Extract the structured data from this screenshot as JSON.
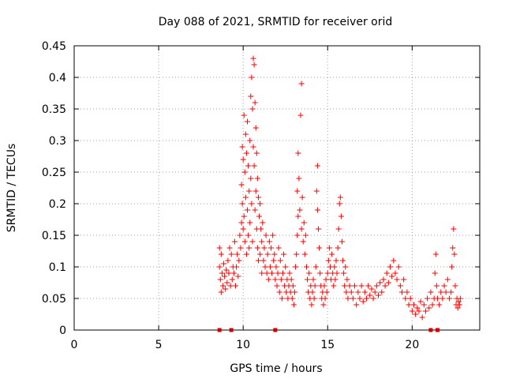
{
  "chart_data": {
    "type": "scatter",
    "title": "Day 088 of 2021, SRMTID for receiver orid",
    "xlabel": "GPS time / hours",
    "ylabel": "SRMTID / TECUs",
    "xlim": [
      0,
      24
    ],
    "ylim": [
      0,
      0.45
    ],
    "x_ticks": [
      0,
      5,
      10,
      15,
      20
    ],
    "x_tick_labels": [
      "0",
      "5",
      "10",
      "15",
      "20"
    ],
    "y_ticks": [
      0,
      0.05,
      0.1,
      0.15,
      0.2,
      0.25,
      0.3,
      0.35,
      0.4,
      0.45
    ],
    "y_tick_labels": [
      "0",
      "0.05",
      "0.1",
      "0.15",
      "0.2",
      "0.25",
      "0.3",
      "0.35",
      "0.4",
      "0.45"
    ],
    "grid": true,
    "color": "#ff0000",
    "marker_color": "#cc0000",
    "series_markers": "plus",
    "baseline_markers_x": [
      8.6,
      9.3,
      11.9,
      21.1,
      21.5
    ],
    "series": [
      {
        "name": "SRMTID",
        "points": [
          [
            8.6,
            0.13
          ],
          [
            8.6,
            0.1
          ],
          [
            8.65,
            0.08
          ],
          [
            8.7,
            0.12
          ],
          [
            8.7,
            0.06
          ],
          [
            8.75,
            0.09
          ],
          [
            8.8,
            0.07
          ],
          [
            8.85,
            0.105
          ],
          [
            8.9,
            0.085
          ],
          [
            8.95,
            0.065
          ],
          [
            9.0,
            0.095
          ],
          [
            9.05,
            0.075
          ],
          [
            9.1,
            0.11
          ],
          [
            9.15,
            0.09
          ],
          [
            9.2,
            0.13
          ],
          [
            9.25,
            0.07
          ],
          [
            9.3,
            0.12
          ],
          [
            9.35,
            0.08
          ],
          [
            9.4,
            0.1
          ],
          [
            9.45,
            0.09
          ],
          [
            9.5,
            0.14
          ],
          [
            9.55,
            0.07
          ],
          [
            9.6,
            0.1
          ],
          [
            9.65,
            0.12
          ],
          [
            9.7,
            0.085
          ],
          [
            9.75,
            0.11
          ],
          [
            9.8,
            0.15
          ],
          [
            9.85,
            0.13
          ],
          [
            9.9,
            0.17
          ],
          [
            9.9,
            0.23
          ],
          [
            9.95,
            0.2
          ],
          [
            9.95,
            0.29
          ],
          [
            10.0,
            0.27
          ],
          [
            10.0,
            0.16
          ],
          [
            10.05,
            0.34
          ],
          [
            10.05,
            0.18
          ],
          [
            10.1,
            0.25
          ],
          [
            10.1,
            0.14
          ],
          [
            10.15,
            0.31
          ],
          [
            10.15,
            0.21
          ],
          [
            10.2,
            0.28
          ],
          [
            10.2,
            0.12
          ],
          [
            10.25,
            0.33
          ],
          [
            10.25,
            0.19
          ],
          [
            10.3,
            0.26
          ],
          [
            10.3,
            0.15
          ],
          [
            10.35,
            0.22
          ],
          [
            10.35,
            0.13
          ],
          [
            10.4,
            0.3
          ],
          [
            10.4,
            0.17
          ],
          [
            10.45,
            0.37
          ],
          [
            10.45,
            0.24
          ],
          [
            10.5,
            0.4
          ],
          [
            10.5,
            0.2
          ],
          [
            10.55,
            0.35
          ],
          [
            10.55,
            0.14
          ],
          [
            10.6,
            0.43
          ],
          [
            10.6,
            0.29
          ],
          [
            10.65,
            0.42
          ],
          [
            10.65,
            0.26
          ],
          [
            10.7,
            0.36
          ],
          [
            10.7,
            0.19
          ],
          [
            10.75,
            0.32
          ],
          [
            10.75,
            0.22
          ],
          [
            10.8,
            0.28
          ],
          [
            10.8,
            0.16
          ],
          [
            10.85,
            0.24
          ],
          [
            10.85,
            0.13
          ],
          [
            10.9,
            0.21
          ],
          [
            10.9,
            0.11
          ],
          [
            10.95,
            0.18
          ],
          [
            11.0,
            0.2
          ],
          [
            11.0,
            0.12
          ],
          [
            11.05,
            0.16
          ],
          [
            11.1,
            0.14
          ],
          [
            11.1,
            0.09
          ],
          [
            11.15,
            0.17
          ],
          [
            11.2,
            0.11
          ],
          [
            11.25,
            0.13
          ],
          [
            11.3,
            0.1
          ],
          [
            11.35,
            0.15
          ],
          [
            11.4,
            0.09
          ],
          [
            11.45,
            0.12
          ],
          [
            11.5,
            0.08
          ],
          [
            11.55,
            0.14
          ],
          [
            11.6,
            0.1
          ],
          [
            11.65,
            0.13
          ],
          [
            11.7,
            0.09
          ],
          [
            11.75,
            0.15
          ],
          [
            11.8,
            0.11
          ],
          [
            11.85,
            0.12
          ],
          [
            11.9,
            0.08
          ],
          [
            11.95,
            0.1
          ],
          [
            12.0,
            0.07
          ],
          [
            12.05,
            0.09
          ],
          [
            12.1,
            0.13
          ],
          [
            12.15,
            0.06
          ],
          [
            12.2,
            0.11
          ],
          [
            12.25,
            0.08
          ],
          [
            12.3,
            0.05
          ],
          [
            12.35,
            0.09
          ],
          [
            12.4,
            0.12
          ],
          [
            12.45,
            0.07
          ],
          [
            12.5,
            0.1
          ],
          [
            12.55,
            0.06
          ],
          [
            12.6,
            0.08
          ],
          [
            12.65,
            0.05
          ],
          [
            12.7,
            0.07
          ],
          [
            12.75,
            0.09
          ],
          [
            12.8,
            0.06
          ],
          [
            12.85,
            0.08
          ],
          [
            12.9,
            0.05
          ],
          [
            12.95,
            0.07
          ],
          [
            13.0,
            0.04
          ],
          [
            13.05,
            0.06
          ],
          [
            13.1,
            0.1
          ],
          [
            13.15,
            0.12
          ],
          [
            13.2,
            0.22
          ],
          [
            13.2,
            0.15
          ],
          [
            13.25,
            0.28
          ],
          [
            13.25,
            0.18
          ],
          [
            13.3,
            0.24
          ],
          [
            13.35,
            0.19
          ],
          [
            13.4,
            0.34
          ],
          [
            13.45,
            0.39
          ],
          [
            13.45,
            0.16
          ],
          [
            13.5,
            0.21
          ],
          [
            13.55,
            0.14
          ],
          [
            13.6,
            0.17
          ],
          [
            13.65,
            0.12
          ],
          [
            13.7,
            0.15
          ],
          [
            13.75,
            0.1
          ],
          [
            13.8,
            0.08
          ],
          [
            13.85,
            0.06
          ],
          [
            13.9,
            0.09
          ],
          [
            13.95,
            0.05
          ],
          [
            14.0,
            0.07
          ],
          [
            14.05,
            0.04
          ],
          [
            14.1,
            0.06
          ],
          [
            14.15,
            0.08
          ],
          [
            14.2,
            0.05
          ],
          [
            14.25,
            0.07
          ],
          [
            14.3,
            0.1
          ],
          [
            14.35,
            0.22
          ],
          [
            14.4,
            0.26
          ],
          [
            14.4,
            0.19
          ],
          [
            14.45,
            0.16
          ],
          [
            14.5,
            0.13
          ],
          [
            14.55,
            0.09
          ],
          [
            14.6,
            0.07
          ],
          [
            14.65,
            0.05
          ],
          [
            14.7,
            0.06
          ],
          [
            14.75,
            0.04
          ],
          [
            14.8,
            0.07
          ],
          [
            14.85,
            0.05
          ],
          [
            14.9,
            0.08
          ],
          [
            14.95,
            0.06
          ],
          [
            15.0,
            0.09
          ],
          [
            15.05,
            0.11
          ],
          [
            15.1,
            0.13
          ],
          [
            15.15,
            0.1
          ],
          [
            15.2,
            0.08
          ],
          [
            15.25,
            0.12
          ],
          [
            15.3,
            0.09
          ],
          [
            15.35,
            0.07
          ],
          [
            15.4,
            0.1
          ],
          [
            15.45,
            0.08
          ],
          [
            15.5,
            0.11
          ],
          [
            15.55,
            0.09
          ],
          [
            15.6,
            0.13
          ],
          [
            15.65,
            0.16
          ],
          [
            15.7,
            0.2
          ],
          [
            15.75,
            0.21
          ],
          [
            15.8,
            0.18
          ],
          [
            15.85,
            0.14
          ],
          [
            15.9,
            0.11
          ],
          [
            15.95,
            0.09
          ],
          [
            16.0,
            0.07
          ],
          [
            16.05,
            0.1
          ],
          [
            16.1,
            0.06
          ],
          [
            16.15,
            0.08
          ],
          [
            16.2,
            0.05
          ],
          [
            16.3,
            0.07
          ],
          [
            16.4,
            0.06
          ],
          [
            16.5,
            0.05
          ],
          [
            16.6,
            0.07
          ],
          [
            16.7,
            0.04
          ],
          [
            16.8,
            0.06
          ],
          [
            16.9,
            0.05
          ],
          [
            17.0,
            0.07
          ],
          [
            17.1,
            0.045
          ],
          [
            17.2,
            0.06
          ],
          [
            17.3,
            0.05
          ],
          [
            17.4,
            0.07
          ],
          [
            17.5,
            0.055
          ],
          [
            17.6,
            0.065
          ],
          [
            17.7,
            0.05
          ],
          [
            17.8,
            0.06
          ],
          [
            17.9,
            0.07
          ],
          [
            18.0,
            0.055
          ],
          [
            18.1,
            0.075
          ],
          [
            18.2,
            0.06
          ],
          [
            18.3,
            0.08
          ],
          [
            18.4,
            0.07
          ],
          [
            18.5,
            0.09
          ],
          [
            18.6,
            0.075
          ],
          [
            18.7,
            0.1
          ],
          [
            18.8,
            0.085
          ],
          [
            18.9,
            0.11
          ],
          [
            19.0,
            0.09
          ],
          [
            19.1,
            0.08
          ],
          [
            19.2,
            0.1
          ],
          [
            19.3,
            0.07
          ],
          [
            19.4,
            0.06
          ],
          [
            19.5,
            0.08
          ],
          [
            19.6,
            0.05
          ],
          [
            19.7,
            0.06
          ],
          [
            19.8,
            0.04
          ],
          [
            19.9,
            0.05
          ],
          [
            20.0,
            0.03
          ],
          [
            20.1,
            0.04
          ],
          [
            20.2,
            0.025
          ],
          [
            20.3,
            0.035
          ],
          [
            20.4,
            0.03
          ],
          [
            20.5,
            0.045
          ],
          [
            20.6,
            0.02
          ],
          [
            20.7,
            0.04
          ],
          [
            20.8,
            0.03
          ],
          [
            20.9,
            0.05
          ],
          [
            21.0,
            0.035
          ],
          [
            21.1,
            0.06
          ],
          [
            21.2,
            0.04
          ],
          [
            21.3,
            0.05
          ],
          [
            21.35,
            0.09
          ],
          [
            21.4,
            0.12
          ],
          [
            21.45,
            0.07
          ],
          [
            21.5,
            0.05
          ],
          [
            21.6,
            0.04
          ],
          [
            21.7,
            0.06
          ],
          [
            21.8,
            0.05
          ],
          [
            21.9,
            0.07
          ],
          [
            22.0,
            0.06
          ],
          [
            22.1,
            0.08
          ],
          [
            22.2,
            0.05
          ],
          [
            22.3,
            0.06
          ],
          [
            22.35,
            0.1
          ],
          [
            22.4,
            0.13
          ],
          [
            22.45,
            0.16
          ],
          [
            22.5,
            0.12
          ],
          [
            22.55,
            0.07
          ],
          [
            22.6,
            0.04
          ],
          [
            22.65,
            0.05
          ],
          [
            22.7,
            0.035
          ],
          [
            22.75,
            0.045
          ],
          [
            22.8,
            0.04
          ],
          [
            22.85,
            0.05
          ]
        ]
      }
    ]
  }
}
